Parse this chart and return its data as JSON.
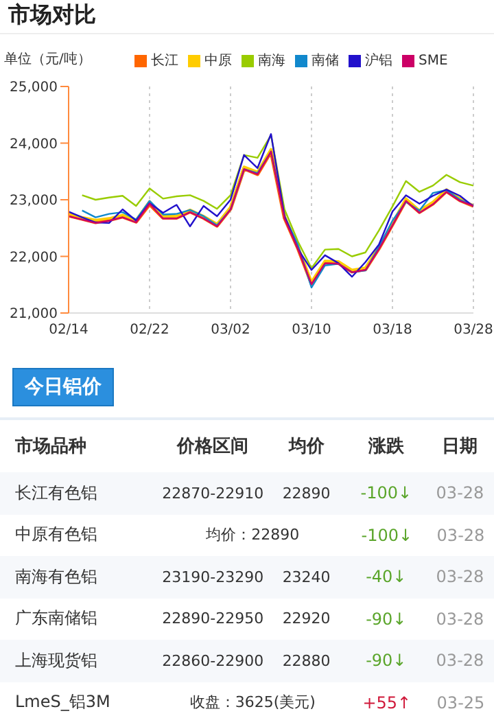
{
  "chart_data": {
    "type": "line",
    "title": "市场对比",
    "ylabel": "单位（元/吨）",
    "categories": [
      "02/14",
      null,
      null,
      null,
      null,
      null,
      "02/22",
      null,
      null,
      null,
      null,
      null,
      "03/02",
      null,
      null,
      null,
      null,
      null,
      "03/10",
      null,
      null,
      null,
      null,
      null,
      "03/18",
      null,
      null,
      null,
      null,
      null,
      "03/28"
    ],
    "series": [
      {
        "name": "长江",
        "color": "#ff6600",
        "values": [
          22720,
          22660,
          22600,
          22640,
          22700,
          22610,
          22920,
          22680,
          22680,
          22790,
          22680,
          22540,
          22840,
          23550,
          23450,
          23850,
          22680,
          22140,
          21520,
          21890,
          21880,
          21730,
          21770,
          22140,
          22560,
          22990,
          22780,
          22930,
          23150,
          22990,
          22890
        ]
      },
      {
        "name": "中原",
        "color": "#ffcc00",
        "values": [
          22750,
          22690,
          22640,
          22670,
          22730,
          22640,
          22970,
          22710,
          22710,
          22820,
          22710,
          22570,
          22870,
          23580,
          23490,
          23890,
          22710,
          22170,
          21550,
          21920,
          21910,
          21760,
          21800,
          22170,
          22590,
          23020,
          22810,
          22960,
          23180,
          23020,
          22890
        ]
      },
      {
        "name": "南海",
        "color": "#99cc00",
        "values": [
          null,
          23080,
          23000,
          23040,
          23070,
          22890,
          23200,
          23020,
          23060,
          23080,
          22980,
          22840,
          23080,
          23790,
          23740,
          24140,
          22830,
          22260,
          21790,
          22120,
          22130,
          22000,
          22070,
          22460,
          22880,
          23330,
          23140,
          23250,
          23440,
          23310,
          23250
        ]
      },
      {
        "name": "南储",
        "color": "#1188cc",
        "values": [
          null,
          22810,
          22690,
          22750,
          22780,
          22650,
          22980,
          22740,
          22750,
          22820,
          22710,
          22550,
          22830,
          23540,
          23470,
          23850,
          22710,
          22200,
          21450,
          21840,
          21870,
          21720,
          21750,
          22170,
          22630,
          22960,
          22810,
          23120,
          23170,
          23000,
          22900
        ]
      },
      {
        "name": "沪铝",
        "color": "#2211cc",
        "values": [
          22790,
          22690,
          22600,
          22590,
          22830,
          22630,
          22940,
          22770,
          22910,
          22530,
          22890,
          22710,
          23000,
          23790,
          23560,
          24160,
          22710,
          22130,
          21760,
          22020,
          21880,
          21640,
          21900,
          22210,
          22790,
          23080,
          22930,
          23070,
          23180,
          23070,
          22880
        ]
      },
      {
        "name": "SME",
        "color": "#cc0066",
        "values": [
          22710,
          22650,
          22590,
          22630,
          22690,
          22600,
          22930,
          22670,
          22670,
          22780,
          22670,
          22530,
          22830,
          23540,
          23450,
          23850,
          22670,
          22130,
          21510,
          21880,
          21870,
          21720,
          21760,
          22130,
          22550,
          22980,
          22770,
          22920,
          23140,
          22980,
          22890
        ]
      }
    ],
    "ylim": [
      21000,
      25000
    ],
    "yticks": [
      {
        "value": 21000,
        "label": "21,000"
      },
      {
        "value": 22000,
        "label": "22,000"
      },
      {
        "value": 23000,
        "label": "23,000"
      },
      {
        "value": 24000,
        "label": "24,000"
      },
      {
        "value": 25000,
        "label": "25,000"
      }
    ],
    "grid": "x",
    "legend": "top",
    "annotations": [
      "今日铝价",
      "市场品种",
      "价格区间",
      "均价",
      "涨跌",
      "日期",
      "长江有色铝",
      "22870-22910",
      "22890",
      "-100↓",
      "03-28",
      "中原有色铝",
      "均价：22890",
      "-100↓",
      "03-28",
      "南海有色铝",
      "23190-23290",
      "23240",
      "-40↓",
      "03-28",
      "广东南储铝",
      "22890-22950",
      "22920",
      "-90↓",
      "03-28",
      "上海现货铝",
      "22860-22900",
      "22880",
      "-90↓",
      "03-28",
      "LmeS_铝3M",
      "收盘：3625(美元)",
      "+55↑",
      "03-25"
    ]
  }
}
